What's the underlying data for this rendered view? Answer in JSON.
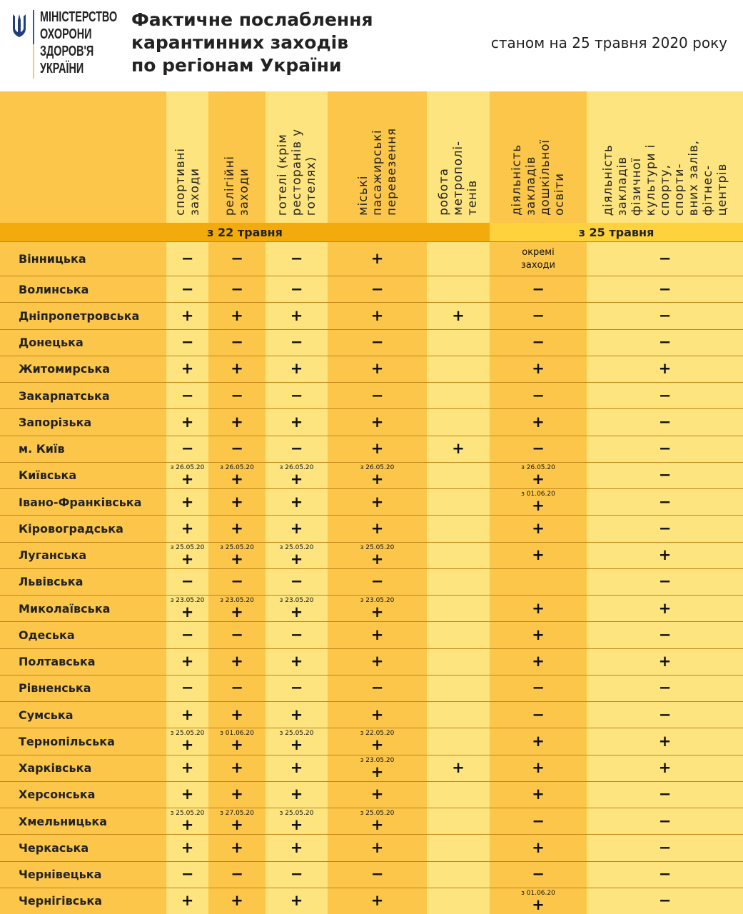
{
  "header": {
    "logo_text": "МІНІСТЕРСТВО\nОХОРОНИ\nЗДОРОВ'Я\nУКРАЇНИ",
    "title": "Фактичне послаблення\nкарантинних заходів\nпо регіонам України",
    "as_of": "станом на 25 травня 2020 року"
  },
  "colors": {
    "light": "#fde47e",
    "dark": "#fcc64a",
    "band_22": "#f2aa0c",
    "band_25": "#fdd23c",
    "line": "#c28617"
  },
  "columns": [
    "спортивні\nзаходи",
    "релігійні\nзаходи",
    "готелі (крім\nресторанів у\nготелях)",
    "міські\nпасажирські\nперевезення",
    "робота\nметрополі-\nтенів",
    "діяльність\nзакладів\nдошкільної\nосвіти",
    "діяльність\nзакладів\nфізичної\nкультури і\nспорту,\nспорти-\nвних залів,\nфітнес-\nцентрів"
  ],
  "bands": [
    "з 22 травня",
    "з 25 травня"
  ],
  "rows": [
    {
      "region": "Вінницька",
      "cells": [
        {
          "v": "−"
        },
        {
          "v": "−"
        },
        {
          "v": "−"
        },
        {
          "v": "+"
        },
        {
          "v": ""
        },
        {
          "t": "окремі\nзаходи"
        },
        {
          "v": "−"
        }
      ]
    },
    {
      "region": "Волинська",
      "cells": [
        {
          "v": "−"
        },
        {
          "v": "−"
        },
        {
          "v": "−"
        },
        {
          "v": "−"
        },
        {
          "v": ""
        },
        {
          "v": "−"
        },
        {
          "v": "−"
        }
      ]
    },
    {
      "region": "Дніпропетровська",
      "cells": [
        {
          "v": "+"
        },
        {
          "v": "+"
        },
        {
          "v": "+"
        },
        {
          "v": "+"
        },
        {
          "v": "+"
        },
        {
          "v": "−"
        },
        {
          "v": "−"
        }
      ]
    },
    {
      "region": "Донецька",
      "cells": [
        {
          "v": "−"
        },
        {
          "v": "−"
        },
        {
          "v": "−"
        },
        {
          "v": "−"
        },
        {
          "v": ""
        },
        {
          "v": "−"
        },
        {
          "v": "−"
        }
      ]
    },
    {
      "region": "Житомирська",
      "cells": [
        {
          "v": "+"
        },
        {
          "v": "+"
        },
        {
          "v": "+"
        },
        {
          "v": "+"
        },
        {
          "v": ""
        },
        {
          "v": "+"
        },
        {
          "v": "+"
        }
      ]
    },
    {
      "region": "Закарпатська",
      "cells": [
        {
          "v": "−"
        },
        {
          "v": "−"
        },
        {
          "v": "−"
        },
        {
          "v": "−"
        },
        {
          "v": ""
        },
        {
          "v": "−"
        },
        {
          "v": "−"
        }
      ]
    },
    {
      "region": "Запорізька",
      "cells": [
        {
          "v": "+"
        },
        {
          "v": "+"
        },
        {
          "v": "+"
        },
        {
          "v": "+"
        },
        {
          "v": ""
        },
        {
          "v": "+"
        },
        {
          "v": "−"
        }
      ]
    },
    {
      "region": "м. Київ",
      "cells": [
        {
          "v": "−"
        },
        {
          "v": "−"
        },
        {
          "v": "−"
        },
        {
          "v": "+"
        },
        {
          "v": "+"
        },
        {
          "v": "−"
        },
        {
          "v": "−"
        }
      ]
    },
    {
      "region": "Київська",
      "cells": [
        {
          "v": "+",
          "n": "з 26.05.20"
        },
        {
          "v": "+",
          "n": "з 26.05.20"
        },
        {
          "v": "+",
          "n": "з 26.05.20"
        },
        {
          "v": "+",
          "n": "з 26.05.20"
        },
        {
          "v": ""
        },
        {
          "v": "+",
          "n": "з 26.05.20"
        },
        {
          "v": "−"
        }
      ]
    },
    {
      "region": "Івано-Франківська",
      "cells": [
        {
          "v": "+"
        },
        {
          "v": "+"
        },
        {
          "v": "+"
        },
        {
          "v": "+"
        },
        {
          "v": ""
        },
        {
          "v": "+",
          "n": "з 01.06.20"
        },
        {
          "v": "−"
        }
      ]
    },
    {
      "region": "Кіровоградська",
      "cells": [
        {
          "v": "+"
        },
        {
          "v": "+"
        },
        {
          "v": "+"
        },
        {
          "v": "+"
        },
        {
          "v": ""
        },
        {
          "v": "+"
        },
        {
          "v": "−"
        }
      ]
    },
    {
      "region": "Луганська",
      "cells": [
        {
          "v": "+",
          "n": "з 25.05.20"
        },
        {
          "v": "+",
          "n": "з 25.05.20"
        },
        {
          "v": "+",
          "n": "з 25.05.20"
        },
        {
          "v": "+",
          "n": "з 25.05.20"
        },
        {
          "v": ""
        },
        {
          "v": "+"
        },
        {
          "v": "+"
        }
      ]
    },
    {
      "region": "Львівська",
      "cells": [
        {
          "v": "−"
        },
        {
          "v": "−"
        },
        {
          "v": "−"
        },
        {
          "v": "−"
        },
        {
          "v": ""
        },
        {
          "v": ""
        },
        {
          "v": "−"
        }
      ]
    },
    {
      "region": "Миколаївська",
      "cells": [
        {
          "v": "+",
          "n": "з 23.05.20"
        },
        {
          "v": "+",
          "n": "з 23.05.20"
        },
        {
          "v": "+",
          "n": "з 23.05.20"
        },
        {
          "v": "+",
          "n": "з 23.05.20"
        },
        {
          "v": ""
        },
        {
          "v": "+"
        },
        {
          "v": "+"
        }
      ]
    },
    {
      "region": "Одеська",
      "cells": [
        {
          "v": "−"
        },
        {
          "v": "−"
        },
        {
          "v": "−"
        },
        {
          "v": "+"
        },
        {
          "v": ""
        },
        {
          "v": "+"
        },
        {
          "v": "−"
        }
      ]
    },
    {
      "region": "Полтавська",
      "cells": [
        {
          "v": "+"
        },
        {
          "v": "+"
        },
        {
          "v": "+"
        },
        {
          "v": "+"
        },
        {
          "v": ""
        },
        {
          "v": "+"
        },
        {
          "v": "+"
        }
      ]
    },
    {
      "region": "Рівненська",
      "cells": [
        {
          "v": "−"
        },
        {
          "v": "−"
        },
        {
          "v": "−"
        },
        {
          "v": "−"
        },
        {
          "v": ""
        },
        {
          "v": "−"
        },
        {
          "v": "−"
        }
      ]
    },
    {
      "region": "Сумська",
      "cells": [
        {
          "v": "+"
        },
        {
          "v": "+"
        },
        {
          "v": "+"
        },
        {
          "v": "+"
        },
        {
          "v": ""
        },
        {
          "v": "−"
        },
        {
          "v": "−"
        }
      ]
    },
    {
      "region": "Тернопільська",
      "cells": [
        {
          "v": "+",
          "n": "з 25.05.20"
        },
        {
          "v": "+",
          "n": "з 01.06.20"
        },
        {
          "v": "+",
          "n": "з 25.05.20"
        },
        {
          "v": "+",
          "n": "з 22.05.20"
        },
        {
          "v": ""
        },
        {
          "v": "+"
        },
        {
          "v": "+"
        }
      ]
    },
    {
      "region": "Харківська",
      "cells": [
        {
          "v": "+"
        },
        {
          "v": "+"
        },
        {
          "v": "+"
        },
        {
          "v": "+",
          "n": "з 23.05.20"
        },
        {
          "v": "+"
        },
        {
          "v": "+"
        },
        {
          "v": "+"
        }
      ]
    },
    {
      "region": "Херсонська",
      "cells": [
        {
          "v": "+"
        },
        {
          "v": "+"
        },
        {
          "v": "+"
        },
        {
          "v": "+"
        },
        {
          "v": ""
        },
        {
          "v": "+"
        },
        {
          "v": "−"
        }
      ]
    },
    {
      "region": "Хмельницька",
      "cells": [
        {
          "v": "+",
          "n": "з 25.05.20"
        },
        {
          "v": "+",
          "n": "з 27.05.20"
        },
        {
          "v": "+",
          "n": "з 25.05.20"
        },
        {
          "v": "+",
          "n": "з 25.05.20"
        },
        {
          "v": ""
        },
        {
          "v": "−"
        },
        {
          "v": "−"
        }
      ]
    },
    {
      "region": "Черкаська",
      "cells": [
        {
          "v": "+"
        },
        {
          "v": "+"
        },
        {
          "v": "+"
        },
        {
          "v": "+"
        },
        {
          "v": ""
        },
        {
          "v": "+"
        },
        {
          "v": "−"
        }
      ]
    },
    {
      "region": "Чернівецька",
      "cells": [
        {
          "v": "−"
        },
        {
          "v": "−"
        },
        {
          "v": "−"
        },
        {
          "v": "−"
        },
        {
          "v": ""
        },
        {
          "v": "−"
        },
        {
          "v": "−"
        }
      ]
    },
    {
      "region": "Чернігівська",
      "cells": [
        {
          "v": "+"
        },
        {
          "v": "+"
        },
        {
          "v": "+"
        },
        {
          "v": "+"
        },
        {
          "v": ""
        },
        {
          "v": "+",
          "n": "з 01.06.20"
        },
        {
          "v": "−"
        }
      ]
    }
  ]
}
